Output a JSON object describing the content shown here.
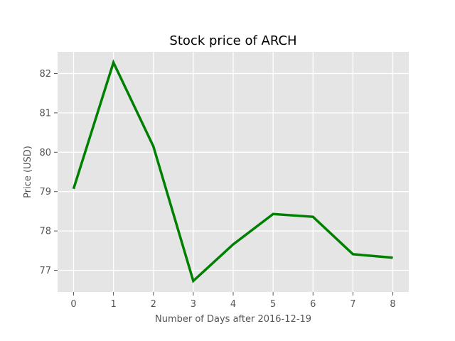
{
  "chart_data": {
    "type": "line",
    "title": "Stock price of ARCH",
    "xlabel": "Number of Days after 2016-12-19",
    "ylabel": "Price (USD)",
    "x": [
      0,
      1,
      2,
      3,
      4,
      5,
      6,
      7,
      8
    ],
    "xticks": [
      "0",
      "1",
      "2",
      "3",
      "4",
      "5",
      "6",
      "7",
      "8"
    ],
    "yticks": [
      "77",
      "78",
      "79",
      "80",
      "81",
      "82"
    ],
    "xlim": [
      -0.4,
      8.4
    ],
    "ylim": [
      76.45,
      82.55
    ],
    "grid": true,
    "series": [
      {
        "values": [
          79.07,
          82.28,
          80.15,
          76.73,
          77.66,
          78.43,
          78.36,
          77.41,
          77.32
        ]
      }
    ],
    "colors": {
      "line": "#008000",
      "plot_background": "#e5e5e5",
      "grid": "#ffffff",
      "tick": "#555555"
    }
  }
}
